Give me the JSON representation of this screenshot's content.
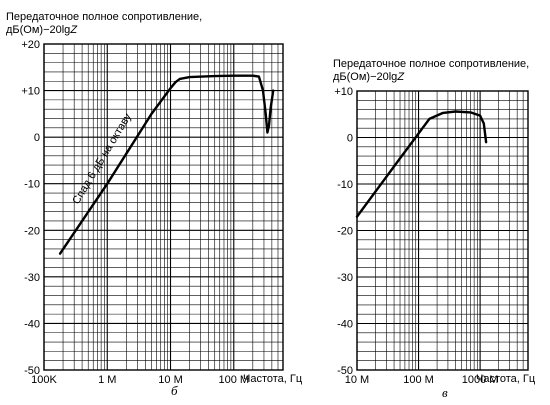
{
  "chart_data": [
    {
      "type": "line",
      "panel_label": "б",
      "ylabel_line1": "Передаточное полное сопротивление,",
      "ylabel_line2": "дБ(Ом)−20lg",
      "ylabel_var": "Z",
      "xlabel": "Частота, Гц",
      "x_scale": "log",
      "xlim": [
        100000,
        600000000
      ],
      "ylim": [
        -50,
        20
      ],
      "x_ticks": [
        {
          "value": 100000,
          "label": "100K"
        },
        {
          "value": 1000000,
          "label": "1 M"
        },
        {
          "value": 10000000,
          "label": "10 M"
        },
        {
          "value": 100000000,
          "label": "100 M"
        }
      ],
      "y_ticks": [
        {
          "value": 20,
          "label": "+20"
        },
        {
          "value": 10,
          "label": "+10"
        },
        {
          "value": 0,
          "label": "0"
        },
        {
          "value": -10,
          "label": "-10"
        },
        {
          "value": -20,
          "label": "-20"
        },
        {
          "value": -30,
          "label": "-30"
        },
        {
          "value": -40,
          "label": "-40"
        },
        {
          "value": -50,
          "label": "-50"
        }
      ],
      "annotation": "Спад 6 дБ на октаву",
      "grid": true,
      "series": [
        {
          "x": [
            180000,
            1000000,
            5000000,
            10000000,
            12000000,
            14000000,
            20000000,
            50000000,
            100000000,
            200000000,
            250000000,
            290000000,
            320000000,
            340000000,
            360000000,
            380000000,
            420000000
          ],
          "y": [
            -25,
            -10,
            5,
            10.5,
            11.8,
            12.5,
            12.9,
            13.1,
            13.2,
            13.2,
            13.0,
            10.0,
            5.0,
            1.0,
            2.5,
            6.0,
            10.0
          ]
        }
      ]
    },
    {
      "type": "line",
      "panel_label": "в",
      "ylabel_line1": "Передаточное полное сопротивление,",
      "ylabel_line2": "дБ(Ом)−20lg",
      "ylabel_var": "Z",
      "xlabel": "Частота, Гц",
      "x_scale": "log",
      "xlim": [
        10000000,
        6000000000
      ],
      "ylim": [
        -50,
        10
      ],
      "x_ticks": [
        {
          "value": 10000000,
          "label": "10 M"
        },
        {
          "value": 100000000,
          "label": "100 M"
        },
        {
          "value": 1000000000,
          "label": "1000 M"
        }
      ],
      "y_ticks": [
        {
          "value": 10,
          "label": "+10"
        },
        {
          "value": 0,
          "label": "0"
        },
        {
          "value": -10,
          "label": "-10"
        },
        {
          "value": -20,
          "label": "-20"
        },
        {
          "value": -30,
          "label": "-30"
        },
        {
          "value": -40,
          "label": "-40"
        },
        {
          "value": -50,
          "label": "-50"
        }
      ],
      "grid": true,
      "series": [
        {
          "x": [
            10000000,
            50000000,
            150000000,
            250000000,
            400000000,
            700000000,
            1000000000,
            1150000000,
            1250000000
          ],
          "y": [
            -17,
            -4.5,
            4,
            5.3,
            5.6,
            5.4,
            4.7,
            3,
            -1
          ]
        }
      ]
    }
  ]
}
